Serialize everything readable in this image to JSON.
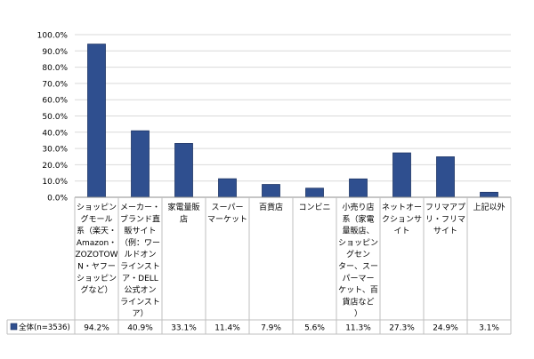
{
  "chart_data": {
    "type": "bar",
    "categories": [
      "ショッピングモール系（楽天・Amazon・ZOZOTOWN・ヤフーショッピングなど）",
      "メーカー・ブランド直販サイト（例：ワールドオンラインストア・DELL公式オンラインストア）",
      "家電量販店",
      "スーパーマーケット",
      "百貨店",
      "コンビニ",
      "小売り店系（家電量販店、ショッピングセンター、スーパーマーケット、百貨店など）",
      "ネットオークションサイト",
      "フリマアプリ・フリマサイト",
      "上記以外"
    ],
    "category_lines": [
      [
        "ショッピン",
        "グモール",
        "系（楽天・",
        "Amazon・",
        "ZOZOTOW",
        "N・ヤフー",
        "ショッピン",
        "グなど）"
      ],
      [
        "メーカー・",
        "ブランド直",
        "販サイト",
        "（例：ワー",
        "ルドオン",
        "ラインスト",
        "ア・DELL",
        "公式オン",
        "ラインスト",
        "ア）"
      ],
      [
        "家電量販",
        "店"
      ],
      [
        "スーパー",
        "マーケット"
      ],
      [
        "百貨店"
      ],
      [
        "コンビニ"
      ],
      [
        "小売り店",
        "系（家電",
        "量販店、",
        "ショッピン",
        "グセン",
        "ター、スー",
        "パーマー",
        "ケット、百",
        "貨店など",
        "）"
      ],
      [
        "ネットオー",
        "クションサ",
        "イト"
      ],
      [
        "フリマアプ",
        "リ・フリマ",
        "サイト"
      ],
      [
        "上記以外"
      ]
    ],
    "series": [
      {
        "name": "全体(n=3536)",
        "values": [
          94.2,
          40.9,
          33.1,
          11.4,
          7.9,
          5.6,
          11.3,
          27.3,
          24.9,
          3.1
        ],
        "labels": [
          "94.2%",
          "40.9%",
          "33.1%",
          "11.4%",
          "7.9%",
          "5.6%",
          "11.3%",
          "27.3%",
          "24.9%",
          "3.1%"
        ],
        "color": "#2f4f8f"
      }
    ],
    "ylim": [
      0,
      100
    ],
    "yticks": [
      0,
      10,
      20,
      30,
      40,
      50,
      60,
      70,
      80,
      90,
      100
    ],
    "ytick_labels": [
      "0.0%",
      "10.0%",
      "20.0%",
      "30.0%",
      "40.0%",
      "50.0%",
      "60.0%",
      "70.0%",
      "80.0%",
      "90.0%",
      "100.0%"
    ],
    "grid": true,
    "legend": "data-table",
    "colors": {
      "bar": "#2f4f8f",
      "bar_edge": "#1f3666",
      "grid": "#d9d9d9",
      "table_line": "#bfbfbf"
    }
  }
}
